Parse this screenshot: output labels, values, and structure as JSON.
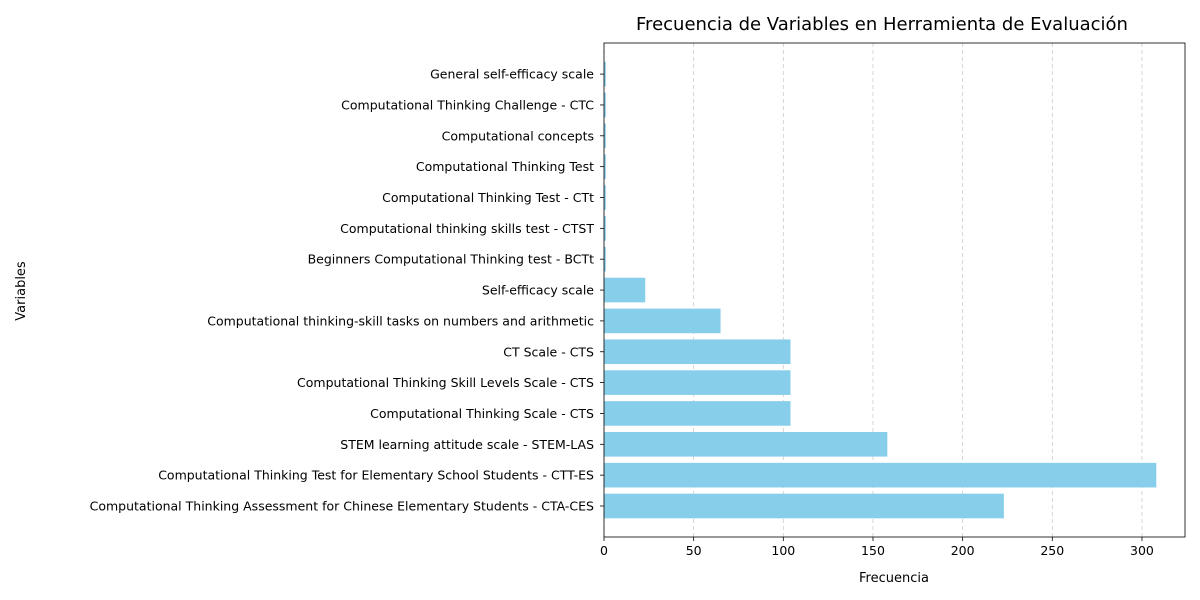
{
  "chart_data": {
    "type": "bar",
    "orientation": "horizontal",
    "title": "Frecuencia de Variables en Herramienta de Evaluación",
    "xlabel": "Frecuencia",
    "ylabel": "Variables",
    "categories": [
      "Computational Thinking Assessment for Chinese Elementary Students - CTA-CES",
      "Computational Thinking Test for Elementary School Students - CTT-ES",
      "STEM learning attitude scale - STEM-LAS",
      "Computational Thinking Scale - CTS",
      "Computational Thinking Skill Levels Scale - CTS",
      "CT Scale - CTS",
      "Computational thinking-skill tasks on numbers and arithmetic",
      "Self-efficacy scale",
      "Beginners Computational Thinking test - BCTt",
      "Computational thinking skills test - CTST",
      "Computational Thinking Test - CTt",
      "Computational Thinking Test",
      "Computational concepts",
      "Computational Thinking Challenge - CTC",
      "General self-efficacy scale"
    ],
    "values": [
      223,
      308,
      158,
      104,
      104,
      104,
      65,
      23,
      1,
      1,
      1,
      1,
      1,
      1,
      1
    ],
    "xlim": [
      0,
      324
    ],
    "xticks": [
      0,
      50,
      100,
      150,
      200,
      250,
      300
    ],
    "grid": "x-dashed",
    "legend": "none",
    "bar_color": "#87CEEB",
    "grid_color": "#cccccc"
  }
}
